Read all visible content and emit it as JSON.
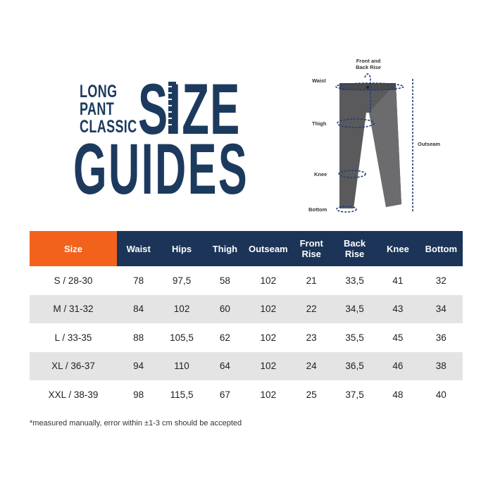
{
  "title": {
    "line1": "LONG",
    "line2": "PANT",
    "line3": "CLASSIC",
    "size": "SIZE",
    "guides": "GUIDES"
  },
  "diagram": {
    "labels": {
      "rise": "Front and Back Rise",
      "waist": "Waist",
      "thigh": "Thigh",
      "knee": "Knee",
      "bottom": "Bottom",
      "outseam": "Outseam"
    }
  },
  "colors": {
    "navy": "#1b3457",
    "orange": "#f2621c",
    "alt_row": "#e4e4e4"
  },
  "table": {
    "headers": [
      "Size",
      "Waist",
      "Hips",
      "Thigh",
      "Outseam",
      "Front Rise",
      "Back Rise",
      "Knee",
      "Bottom"
    ],
    "rows": [
      [
        "S / 28-30",
        "78",
        "97,5",
        "58",
        "102",
        "21",
        "33,5",
        "41",
        "32"
      ],
      [
        "M / 31-32",
        "84",
        "102",
        "60",
        "102",
        "22",
        "34,5",
        "43",
        "34"
      ],
      [
        "L / 33-35",
        "88",
        "105,5",
        "62",
        "102",
        "23",
        "35,5",
        "45",
        "36"
      ],
      [
        "XL / 36-37",
        "94",
        "110",
        "64",
        "102",
        "24",
        "36,5",
        "46",
        "38"
      ],
      [
        "XXL / 38-39",
        "98",
        "115,5",
        "67",
        "102",
        "25",
        "37,5",
        "48",
        "40"
      ]
    ]
  },
  "footnote": "*measured manually, error within  ±1-3 cm should be accepted"
}
